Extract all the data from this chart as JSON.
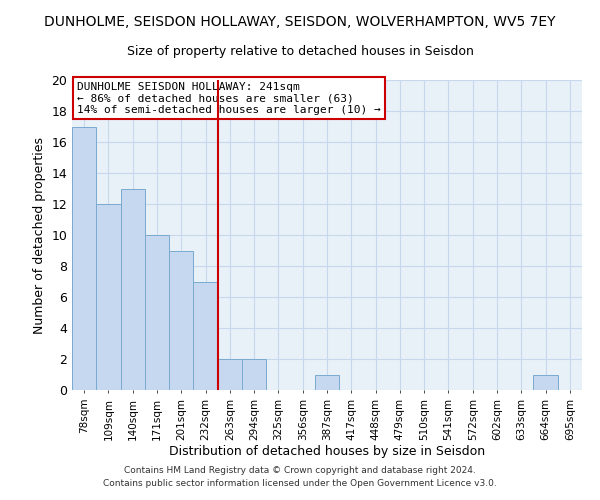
{
  "title_line1": "DUNHOLME, SEISDON HOLLAWAY, SEISDON, WOLVERHAMPTON, WV5 7EY",
  "title_line2": "Size of property relative to detached houses in Seisdon",
  "xlabel": "Distribution of detached houses by size in Seisdon",
  "ylabel": "Number of detached properties",
  "categories": [
    "78sqm",
    "109sqm",
    "140sqm",
    "171sqm",
    "201sqm",
    "232sqm",
    "263sqm",
    "294sqm",
    "325sqm",
    "356sqm",
    "387sqm",
    "417sqm",
    "448sqm",
    "479sqm",
    "510sqm",
    "541sqm",
    "572sqm",
    "602sqm",
    "633sqm",
    "664sqm",
    "695sqm"
  ],
  "values": [
    17,
    12,
    13,
    10,
    9,
    7,
    2,
    2,
    0,
    0,
    1,
    0,
    0,
    0,
    0,
    0,
    0,
    0,
    0,
    1,
    0
  ],
  "bar_color": "#c5d8f0",
  "bar_edge_color": "#7aaad0",
  "grid_color": "#c8d8ec",
  "background_color": "#e8f0f8",
  "annotation_text": "DUNHOLME SEISDON HOLLAWAY: 241sqm\n← 86% of detached houses are smaller (63)\n14% of semi-detached houses are larger (10) →",
  "annotation_box_color": "#ffffff",
  "annotation_box_edge_color": "#cc0000",
  "vline_x": 5.5,
  "vline_color": "#cc0000",
  "ylim": [
    0,
    20
  ],
  "yticks": [
    0,
    2,
    4,
    6,
    8,
    10,
    12,
    14,
    16,
    18,
    20
  ],
  "footer_line1": "Contains HM Land Registry data © Crown copyright and database right 2024.",
  "footer_line2": "Contains public sector information licensed under the Open Government Licence v3.0."
}
